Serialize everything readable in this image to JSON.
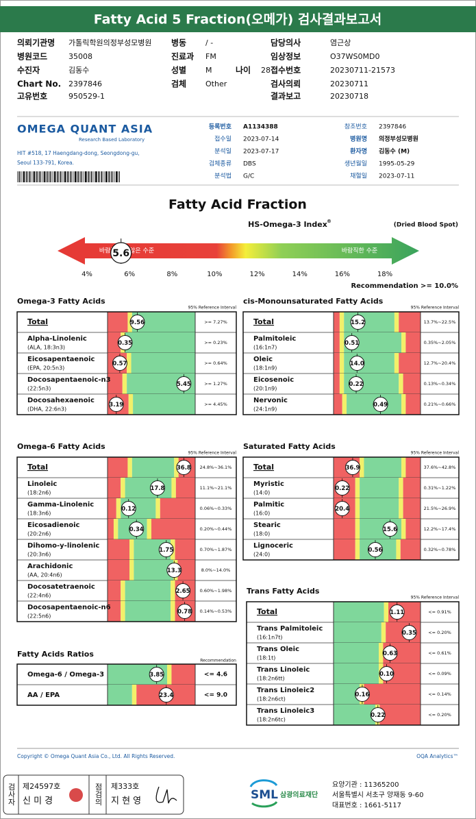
{
  "header": {
    "title": "Fatty Acid 5 Fraction(오메가) 검사결과보고서"
  },
  "info": {
    "left": [
      [
        "의뢰기관명",
        "가톨릭학원의정부성모병원"
      ],
      [
        "병원코드",
        "35008"
      ],
      [
        "수진자",
        "김동수"
      ],
      [
        "Chart No.",
        "2397846"
      ],
      [
        "고유번호",
        "950529-1"
      ]
    ],
    "mid": [
      [
        "병동",
        "/ -"
      ],
      [
        "진료과",
        "FM"
      ],
      [
        "성별",
        "M"
      ],
      [
        "검체",
        "Other"
      ]
    ],
    "age": [
      "나이",
      "28"
    ],
    "right": [
      [
        "담당의사",
        "염근상"
      ],
      [
        "임상정보",
        "O37WS0MD0"
      ],
      [
        "접수번호",
        "20230711-21573"
      ],
      [
        "검사의뢰",
        "20230711"
      ],
      [
        "결과보고",
        "20230718"
      ]
    ]
  },
  "lab": {
    "logo": "OMEGA QUANT ASIA",
    "tagline": "Research Based Laboratory",
    "address": [
      "HIT #518, 17 Haengdang-dong, Seongdong-gu,",
      "Seoul 133-791, Korea."
    ],
    "fields_mid": [
      [
        "등록번호",
        "A1134388"
      ],
      [
        "접수일",
        "2023-07-14"
      ],
      [
        "분석일",
        "2023-07-17"
      ],
      [
        "검체종류",
        "DBS"
      ],
      [
        "분석법",
        "G/C"
      ]
    ],
    "fields_right": [
      [
        "참조번호",
        "2397846"
      ],
      [
        "병원명",
        "의정부성모병원"
      ],
      [
        "환자명",
        "김동수 (M)"
      ],
      [
        "생년월일",
        "1995-05-29"
      ],
      [
        "채혈일",
        "2023-07-11"
      ]
    ]
  },
  "index": {
    "title": "Fatty Acid Fraction",
    "name": "HS-Omega-3 Index",
    "mark": "®",
    "specimen": "(Dried Blood Spot)",
    "low_label": "바람직하지 않은 수준",
    "high_label": "바람직한 수준",
    "value": 5.6,
    "ticks": [
      {
        "value": 4,
        "label": "4%"
      },
      {
        "value": 6,
        "label": "6%"
      },
      {
        "value": 8,
        "label": "8%"
      },
      {
        "value": 10,
        "label": "10%"
      },
      {
        "value": 12,
        "label": "12%"
      },
      {
        "value": 14,
        "label": "14%"
      },
      {
        "value": 16,
        "label": "16%"
      },
      {
        "value": 18,
        "label": "18%"
      }
    ],
    "recommendation": "Recommendation  >= 10.0%"
  },
  "sections": [
    {
      "title": "Omega-3 Fatty Acids",
      "ref_header": "95% Reference Interval",
      "rows": [
        {
          "name": "Total",
          "value": "9.56",
          "ref": ">= 7.27%"
        },
        {
          "name": "Alpha-Linolenic",
          "sub": "(ALA, 18:3n3)",
          "value": "0.35",
          "ref": ">= 0.23%"
        },
        {
          "name": "Eicosapentaenoic",
          "sub": "(EPA, 20:5n3)",
          "value": "0.57",
          "ref": ">= 0.64%"
        },
        {
          "name": "Docosapentaenoic-n3",
          "sub": "(22:5n3)",
          "value": "5.45",
          "ref": ">= 1.27%"
        },
        {
          "name": "Docosahexaenoic",
          "sub": "(DHA, 22:6n3)",
          "value": "3.19",
          "ref": ">= 4.45%"
        }
      ]
    },
    {
      "title": "cis-Monounsaturated Fatty Acids",
      "ref_header": "95% Reference Interval",
      "rows": [
        {
          "name": "Total",
          "value": "15.2",
          "ref": "13.7%~22.5%"
        },
        {
          "name": "Palmitoleic",
          "sub": "(16:1n7)",
          "value": "0.51",
          "ref": "0.35%~2.05%"
        },
        {
          "name": "Oleic",
          "sub": "(18:1n9)",
          "value": "14.0",
          "ref": "12.7%~20.4%"
        },
        {
          "name": "Eicosenoic",
          "sub": "(20:1n9)",
          "value": "0.22",
          "ref": "0.13%~0.34%"
        },
        {
          "name": "Nervonic",
          "sub": "(24:1n9)",
          "value": "0.49",
          "ref": "0.21%~0.66%"
        }
      ]
    },
    {
      "title": "Omega-6 Fatty Acids",
      "ref_header": "95% Reference Interval",
      "rows": [
        {
          "name": "Total",
          "value": "36.8",
          "ref": "24.8%~36.1%"
        },
        {
          "name": "Linoleic",
          "sub": "(18:2n6)",
          "value": "17.8",
          "ref": "11.1%~21.1%"
        },
        {
          "name": "Gamma-Linolenic",
          "sub": "(18:3n6)",
          "value": "0.12",
          "ref": "0.06%~0.33%"
        },
        {
          "name": "Eicosadienoic",
          "sub": "(20:2n6)",
          "value": "0.34",
          "ref": "0.20%~0.44%"
        },
        {
          "name": "Dihomo-y-linolenic",
          "sub": "(20:3n6)",
          "value": "1.75",
          "ref": "0.70%~1.87%"
        },
        {
          "name": "Arachidonic",
          "sub": "(AA, 20:4n6)",
          "value": "13.3",
          "ref": "8.0%~14.0%"
        },
        {
          "name": "Docosatetraenoic",
          "sub": "(22:4n6)",
          "value": "2.65",
          "ref": "0.60%~1.98%"
        },
        {
          "name": "Docosapentaenoic-n6",
          "sub": "(22:5n6)",
          "value": "0.78",
          "ref": "0.14%~0.53%"
        }
      ]
    },
    {
      "title": "Saturated Fatty Acids",
      "ref_header": "95% Reference Interval",
      "rows": [
        {
          "name": "Total",
          "value": "36.9",
          "ref": "37.6%~42.8%"
        },
        {
          "name": "Myristic",
          "sub": "(14:0)",
          "value": "0.22",
          "ref": "0.31%~1.22%"
        },
        {
          "name": "Palmitic",
          "sub": "(16:0)",
          "value": "20.4",
          "ref": "21.5%~26.9%"
        },
        {
          "name": "Stearic",
          "sub": "(18:0)",
          "value": "15.6",
          "ref": "12.2%~17.4%"
        },
        {
          "name": "Lignoceric",
          "sub": "(24:0)",
          "value": "0.56",
          "ref": "0.32%~0.78%"
        }
      ]
    },
    {
      "title": "Trans Fatty Acids",
      "ref_header": "95% Reference Interval",
      "rows": [
        {
          "name": "Total",
          "value": "1.11",
          "ref": "<= 0.91%"
        },
        {
          "name": "Trans Palmitoleic",
          "sub": "(16:1n7t)",
          "value": "0.35",
          "ref": "<= 0.20%"
        },
        {
          "name": "Trans Oleic",
          "sub": "(18:1t)",
          "value": "0.63",
          "ref": "<= 0.61%"
        },
        {
          "name": "Trans Linoleic",
          "sub": "(18:2n6tt)",
          "value": "0.10",
          "ref": "<= 0.09%"
        },
        {
          "name": "Trans Linoleic2",
          "sub": "(18:2n6ct)",
          "value": "0.16",
          "ref": "<= 0.14%"
        },
        {
          "name": "Trans Linoleic3",
          "sub": "(18:2n6tc)",
          "value": "0.22",
          "ref": "<= 0.20%"
        }
      ]
    },
    {
      "title": "Fatty Acids Ratios",
      "ref_header": "Recommendation",
      "rows": [
        {
          "name": "Omega-6 / Omega-3",
          "value": "3.85",
          "ref": "<= 4.6"
        },
        {
          "name": "AA / EPA",
          "value": "23.4",
          "ref": "<= 9.0"
        }
      ]
    }
  ],
  "footer": {
    "copyright": "Copyright © Omega Quant Asia Co., Ltd.  All Rights Reserved.",
    "analytics": "OQA Analytics™"
  },
  "sign": {
    "inspector_label": "검사자",
    "inspector_no": "제24597호",
    "inspector_name": "신 미 경",
    "reviewer_label": "점검의",
    "reviewer_no": "제333호",
    "reviewer_name": "지 현 영"
  },
  "org": {
    "logo": "SML",
    "name": "삼광의료재단",
    "lines": [
      "요양기관 : 11365200",
      "서울특별시 서초구 양재동 9-60",
      "대표번호 : 1661-5117"
    ]
  }
}
